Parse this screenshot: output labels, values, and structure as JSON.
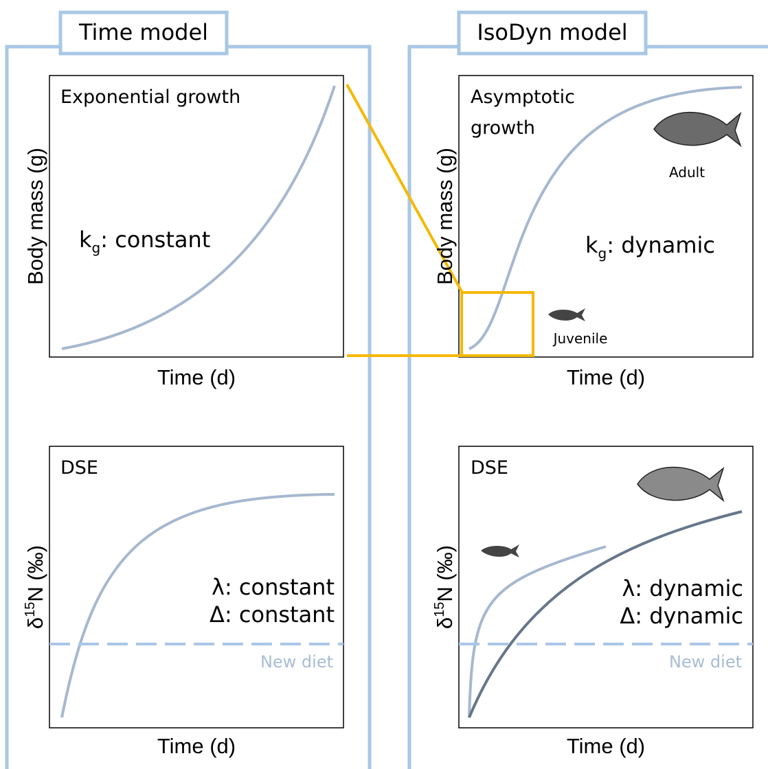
{
  "panels": [
    {
      "title": "Time model",
      "growth": {
        "label": "Exponential growth",
        "y_axis": "Body mass (g)",
        "x_axis": "Time (d)",
        "rate": {
          "symbol": "k",
          "subscript": "g",
          "text": ": constant"
        }
      },
      "dse": {
        "label": "DSE",
        "y_axis": {
          "symbol": "δ",
          "superscript": "15",
          "text": "N (‰)"
        },
        "x_axis": "Time (d)",
        "lines": [
          "λ: constant",
          "Δ: constant"
        ],
        "diet": "New diet"
      }
    },
    {
      "title": "IsoDyn model",
      "growth": {
        "label": [
          "Asymptotic",
          "growth"
        ],
        "y_axis": "Body mass (g)",
        "x_axis": "Time (d)",
        "rate": {
          "symbol": "k",
          "subscript": "g",
          "text": ": dynamic"
        },
        "adult": "Adult",
        "juvenile": "Juvenile"
      },
      "dse": {
        "label": "DSE",
        "y_axis": {
          "symbol": "δ",
          "superscript": "15",
          "text": "N (‰)"
        },
        "x_axis": "Time (d)",
        "lines": [
          "λ: dynamic",
          "Δ: dynamic"
        ],
        "diet": "New diet"
      }
    }
  ]
}
